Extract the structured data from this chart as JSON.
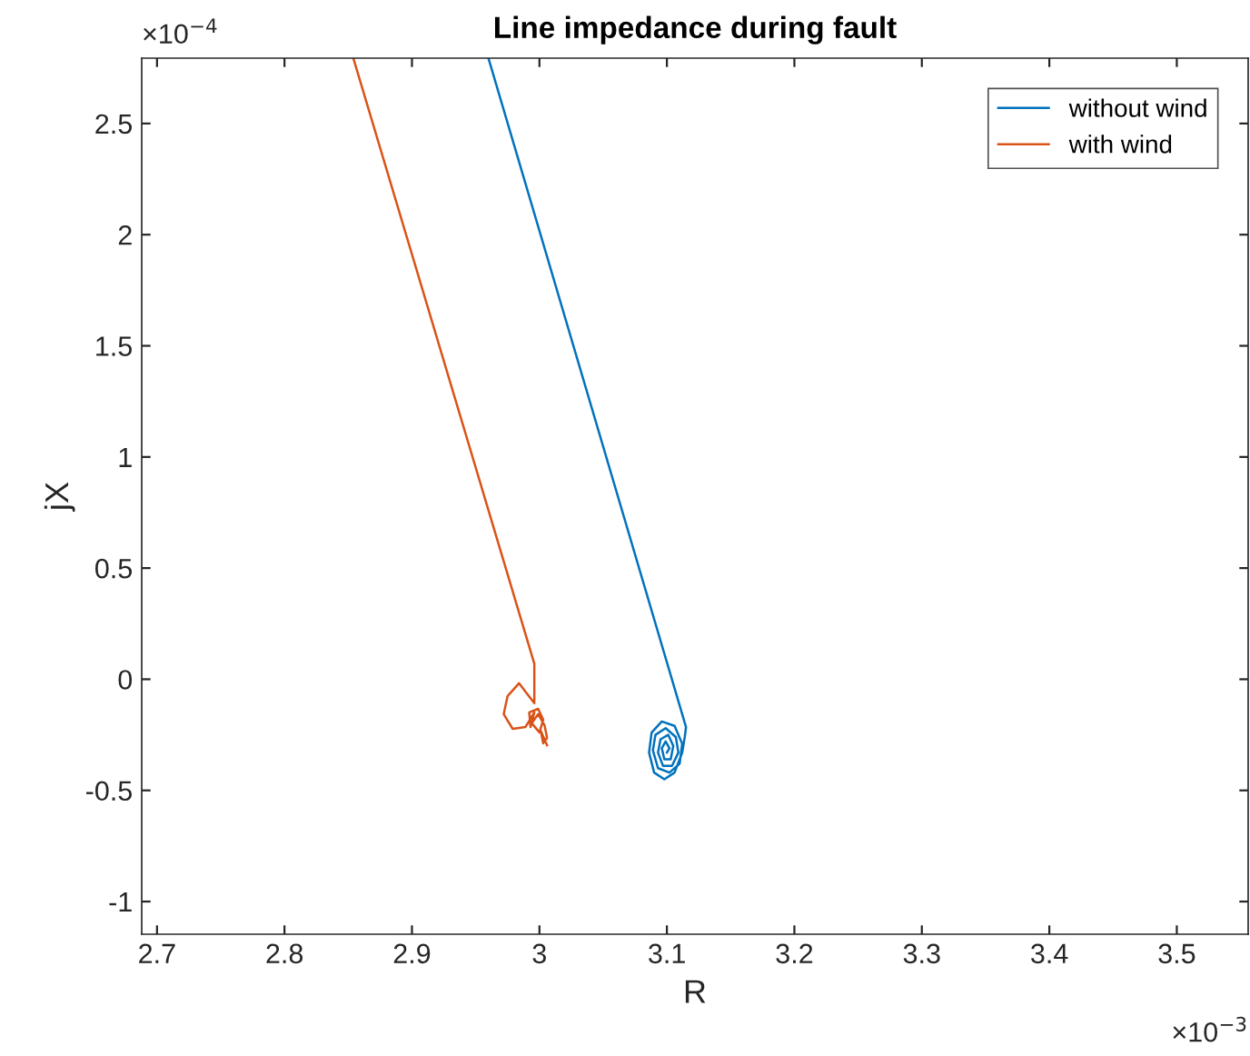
{
  "chart_data": {
    "type": "line",
    "title": "Line impedance during fault",
    "xlabel": "R",
    "ylabel": "jX",
    "annotations": [
      "×10$^{−3}$",
      "×10$^{−4}$"
    ],
    "xlim": [
      2.688,
      3.556
    ],
    "xticks": [
      2.7,
      2.8,
      2.9,
      3,
      3.1,
      3.2,
      3.3,
      3.4,
      3.5
    ],
    "ylim": [
      -1.147,
      2.794
    ],
    "yticks": [
      -1,
      -0.5,
      0,
      0.5,
      1,
      1.5,
      2,
      2.5
    ],
    "grid": false,
    "legend": "top right",
    "line_style": "solid",
    "marker": "none",
    "series": [
      {
        "name": "without wind",
        "color": "#0072bd",
        "x": [
          2.96,
          3.115,
          3.114,
          3.112,
          3.106,
          3.098,
          3.09,
          3.086,
          3.088,
          3.096,
          3.106,
          3.112,
          3.11,
          3.102,
          3.093,
          3.089,
          3.091,
          3.099,
          3.107,
          3.109,
          3.104,
          3.097,
          3.093,
          3.095,
          3.101,
          3.105,
          3.103,
          3.098,
          3.096,
          3.099,
          3.102,
          3.1
        ],
        "values": [
          2.794,
          -0.215,
          -0.26,
          -0.33,
          -0.42,
          -0.45,
          -0.42,
          -0.33,
          -0.24,
          -0.19,
          -0.21,
          -0.29,
          -0.38,
          -0.42,
          -0.4,
          -0.32,
          -0.25,
          -0.22,
          -0.26,
          -0.33,
          -0.39,
          -0.39,
          -0.33,
          -0.27,
          -0.25,
          -0.3,
          -0.36,
          -0.36,
          -0.31,
          -0.28,
          -0.31,
          -0.33
        ]
      },
      {
        "name": "with wind",
        "color": "#d95319",
        "x": [
          2.854,
          2.996,
          2.996,
          2.996,
          2.984,
          2.975,
          2.972,
          2.979,
          2.989,
          2.996,
          2.993,
          2.992,
          2.999,
          3.003,
          3.0,
          2.994,
          2.999,
          3.004,
          3.006,
          3.003,
          3.001,
          3.006
        ],
        "values": [
          2.794,
          0.07,
          -0.05,
          -0.108,
          -0.018,
          -0.076,
          -0.157,
          -0.223,
          -0.215,
          -0.149,
          -0.215,
          -0.149,
          -0.133,
          -0.182,
          -0.239,
          -0.198,
          -0.157,
          -0.207,
          -0.264,
          -0.288,
          -0.231,
          -0.297
        ]
      }
    ]
  }
}
